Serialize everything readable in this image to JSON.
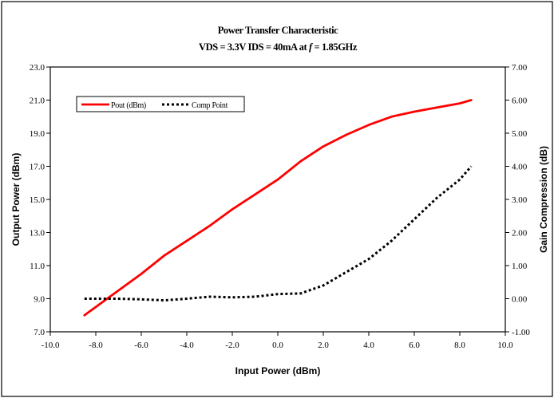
{
  "chart_data": {
    "type": "line",
    "title": "Power Transfer Characteristic",
    "subtitle_parts": {
      "prefix": "VDS = 3.3V IDS = 40mA at ",
      "italic": "f",
      "suffix": " = 1.85GHz"
    },
    "xlabel": "Input Power (dBm)",
    "ylabel": "Output Power (dBm)",
    "y2label": "Gain Compression (dB)",
    "xlim": [
      -10,
      10
    ],
    "ylim": [
      7,
      23
    ],
    "y2lim": [
      -1,
      7
    ],
    "xticks": [
      -10,
      -8,
      -6,
      -4,
      -2,
      0,
      2,
      4,
      6,
      8,
      10
    ],
    "xtick_labels": [
      "-10.0",
      "-8.0",
      "-6.0",
      "-4.0",
      "-2.0",
      "0.0",
      "2.0",
      "4.0",
      "6.0",
      "8.0",
      "10.0"
    ],
    "yticks": [
      7,
      9,
      11,
      13,
      15,
      17,
      19,
      21,
      23
    ],
    "ytick_labels": [
      "7.0",
      "9.0",
      "11.0",
      "13.0",
      "15.0",
      "17.0",
      "19.0",
      "21.0",
      "23.0"
    ],
    "y2ticks": [
      -1,
      0,
      1,
      2,
      3,
      4,
      5,
      6,
      7
    ],
    "y2tick_labels": [
      "-1.00",
      "0.00",
      "1.00",
      "2.00",
      "3.00",
      "4.00",
      "5.00",
      "6.00",
      "7.00"
    ],
    "grid": false,
    "legend_position": "upper-left",
    "series": [
      {
        "name": "Pout (dBm)",
        "axis": "left",
        "style": "solid",
        "color": "#ff0000",
        "x": [
          -8.5,
          -8,
          -7,
          -6,
          -5,
          -4,
          -3,
          -2,
          -1,
          0,
          1,
          2,
          3,
          4,
          5,
          6,
          7,
          8,
          8.5
        ],
        "y": [
          8.0,
          8.5,
          9.5,
          10.5,
          11.6,
          12.5,
          13.4,
          14.4,
          15.3,
          16.2,
          17.3,
          18.2,
          18.9,
          19.5,
          20.0,
          20.3,
          20.55,
          20.8,
          21.0
        ]
      },
      {
        "name": "Comp Point",
        "axis": "right",
        "style": "dotted",
        "color": "#000000",
        "x": [
          -8.5,
          -8,
          -7,
          -6,
          -5,
          -4,
          -3,
          -2,
          -1,
          0,
          1,
          2,
          3,
          4,
          5,
          6,
          7,
          8,
          8.5
        ],
        "y": [
          0.0,
          0.0,
          0.0,
          -0.02,
          -0.05,
          0.0,
          0.06,
          0.04,
          0.06,
          0.14,
          0.16,
          0.4,
          0.8,
          1.2,
          1.75,
          2.4,
          3.05,
          3.6,
          4.0
        ]
      }
    ]
  }
}
